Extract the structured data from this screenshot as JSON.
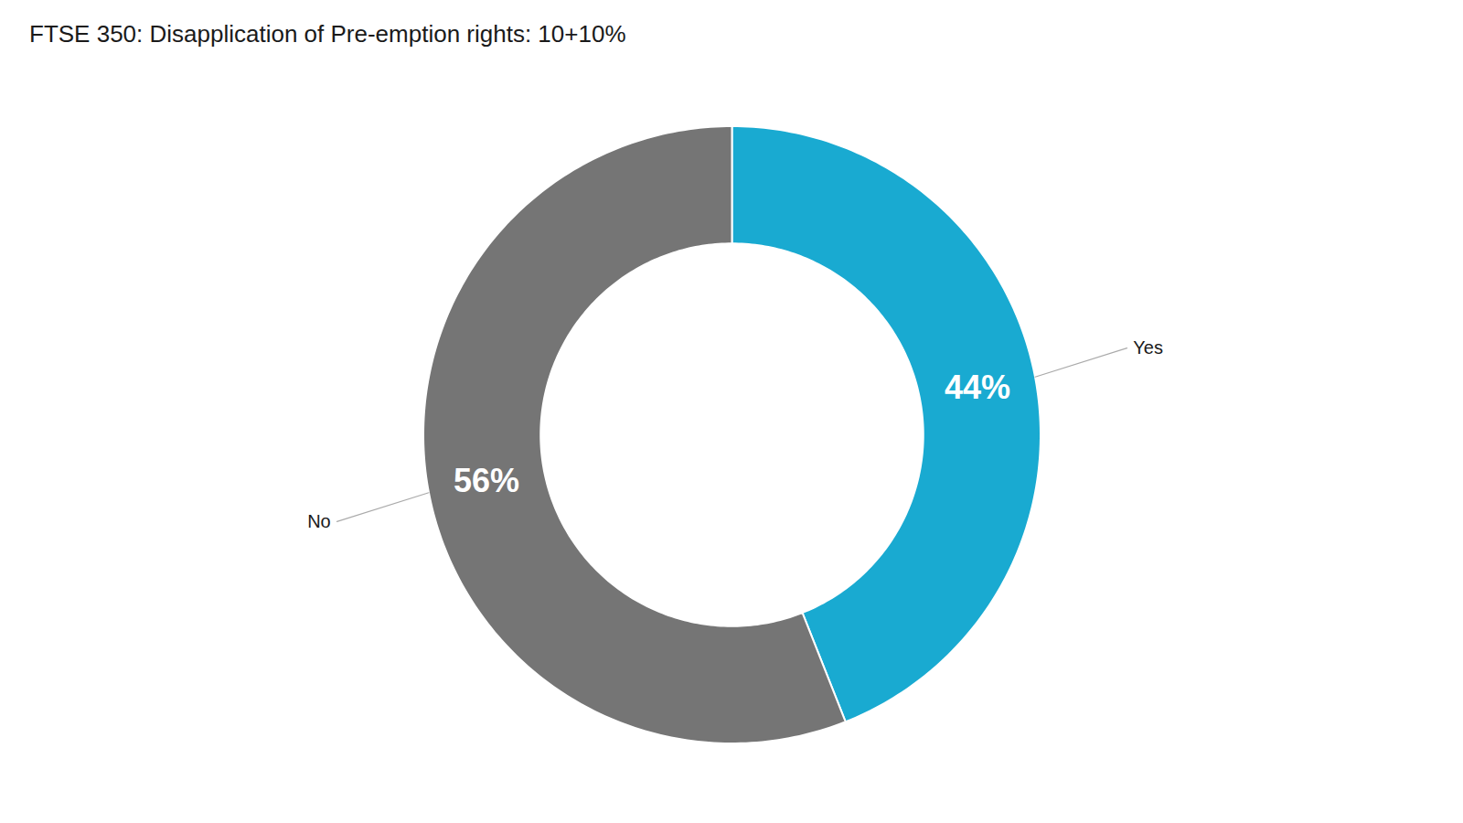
{
  "chart_data": {
    "type": "donut",
    "title": "FTSE 350: Disapplication of Pre-emption rights: 10+10%",
    "categories": [
      "Yes",
      "No"
    ],
    "values": [
      44,
      56
    ],
    "value_labels": [
      "44%",
      "56%"
    ],
    "colors": [
      "#19aad1",
      "#757575"
    ],
    "data_labels": true
  }
}
